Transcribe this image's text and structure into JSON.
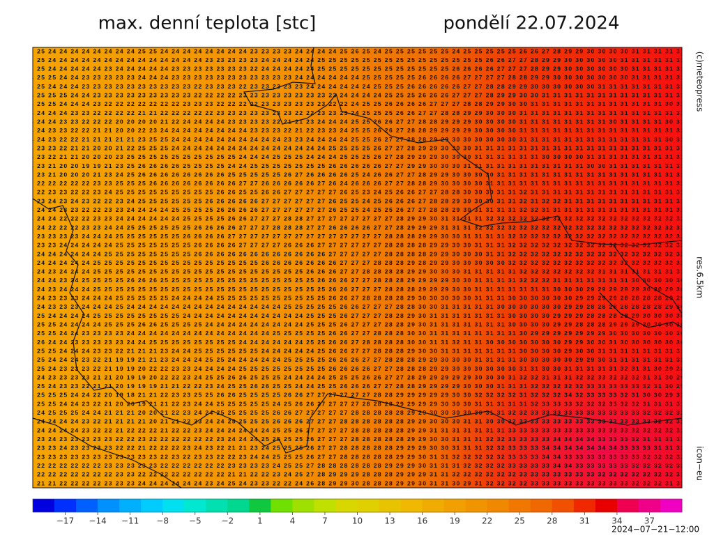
{
  "header": {
    "title": "max. denní teplota [stc]",
    "date": "pondělí 22.07.2024"
  },
  "side_labels": {
    "copyright": "(c)meteopress",
    "resolution": "res.6.5km",
    "model": "icon−eu"
  },
  "footer": {
    "timestamp": "2024−07−21−12:00"
  },
  "map": {
    "rows": [
      "25 25 24 24 24 24 24 24 24 24 25 25 24 24 24 24 24 24 24 24 23 23 23 23 24 24 24 24 25 26 25 24 25 25 25 25 25 25 24 25 25 25 25 25 26 26 27 28 29 29 30 30 30 30 31 31 31 31 31",
      "25 25 24 24 24 24 24 24 24 24 24 24 24 24 24 24 23 23 23 23 23 24 24 24 24 24 25 25 25 25 25 25 25 25 25 25 25 25 25 25 25 26 26 27 27 28 29 29 30 30 30 30 30 31 31 31 31 31 31",
      "25 25 24 24 24 24 24 23 24 24 24 24 24 23 23 23 23 23 23 23 22 24 24 24 24 24 25 25 25 25 25 25 25 25 25 25 25 25 26 26 26 26 27 27 27 28 29 29 30 30 30 30 30 30 31 31 31 31 31",
      "24 25 25 24 24 23 23 23 23 23 24 24 24 23 23 23 23 23 23 23 23 23 23 23 24 24 24 24 24 24 25 25 25 25 25 26 26 26 26 27 27 27 27 28 28 29 29 30 30 30 30 30 30 30 31 31 31 31 31",
      "25 25 24 24 24 23 23 23 23 23 23 23 23 23 23 22 23 23 23 22 23 23 23 23 23 24 24 24 24 24 24 25 25 25 26 26 26 26 26 27 27 28 28 29 29 30 30 30 30 30 30 31 31 31 31 31 31 31 31",
      "24 25 25 25 24 24 23 23 23 23 23 23 23 23 23 22 22 22 22 23 23 23 23 23 23 23 23 23 24 24 24 24 25 25 25 26 26 26 27 27 27 28 29 29 30 30 31 31 31 31 31 31 31 31 31 31 31 31 31",
      "25 25 25 24 24 24 23 22 22 22 22 22 22 22 23 23 23 22 22 22 22 23 23 23 23 23 23 22 22 24 25 25 26 26 26 26 27 27 27 28 28 29 29 30 30 31 31 31 31 31 31 31 31 31 31 31 31 30 31",
      "24 24 24 24 23 23 22 22 22 22 21 21 22 22 22 22 22 23 23 23 23 23 23 23 22 22 23 23 23 24 25 25 25 26 26 27 27 28 28 29 29 30 30 30 31 31 31 31 31 31 31 31 31 31 31 31 31 31 31",
      "24 24 24 23 23 22 22 22 20 20 20 20 21 22 24 24 24 24 23 23 23 23 22 21 21 23 24 24 24 25 25 26 26 27 27 28 28 29 29 29 30 30 30 30 31 31 31 31 31 31 31 31 30 31 31 31 31 30 31",
      "24 24 23 23 22 22 21 21 20 20 22 23 24 24 24 24 24 24 24 24 23 23 23 22 21 22 23 23 24 25 25 26 26 27 28 28 29 29 29 29 30 30 30 30 31 31 31 31 31 31 31 31 31 31 31 31 31 31 31",
      "24 24 23 22 22 21 21 21 21 21 23 25 25 24 24 24 24 24 24 24 24 24 24 23 23 24 24 24 24 25 25 26 27 27 28 28 29 29 30 30 30 30 30 30 31 31 31 31 31 31 31 31 31 31 31 31 31 30 31",
      "24 23 23 22 21 21 20 20 21 22 25 25 25 24 24 24 24 24 24 24 24 24 24 24 24 24 24 25 25 25 25 26 27 27 28 29 29 30 30 30 31 31 31 31 31 31 31 31 31 31 31 31 31 31 31 31 31 31 31",
      "24 23 22 21 21 20 20 20 23 25 25 25 25 25 25 25 25 25 25 24 24 24 25 25 25 24 24 24 25 25 25 26 27 28 29 29 29 30 30 30 31 31 31 31 31 31 30 30 30 30 31 31 31 31 31 31 31 31 31",
      "24 23 21 20 20 19 19 21 23 25 26 26 26 26 25 25 25 25 24 24 25 25 25 25 25 25 25 26 26 26 26 26 27 27 29 29 30 30 30 31 31 31 31 31 31 31 31 31 31 31 30 30 31 31 31 31 31 31 31",
      "23 23 21 20 20 20 21 23 24 25 26 26 26 26 26 26 26 26 25 25 25 25 25 26 27 26 26 26 26 25 24 26 26 27 27 28 29 29 30 30 30 30 31 31 31 31 31 31 31 31 31 31 31 31 31 31 31 31 31",
      "23 22 22 22 22 22 23 23 25 25 25 26 26 26 26 26 26 26 26 27 27 26 26 26 26 26 27 26 24 26 26 26 27 27 28 28 29 30 30 30 30 31 31 31 31 31 31 31 31 31 31 31 31 31 31 31 31 31 31",
      "23 22 23 23 22 22 23 24 25 25 25 25 25 25 25 25 25 26 26 25 25 26 26 27 27 27 27 27 26 25 23 24 25 26 26 27 27 28 28 30 30 30 31 31 32 31 31 31 31 31 31 31 31 31 31 31 31 31 31",
      "23 23 24 23 24 23 22 22 23 24 25 25 25 25 25 25 26 26 26 26 26 27 27 27 27 27 27 26 25 25 24 25 26 26 26 27 28 28 29 30 30 30 31 31 32 31 32 32 31 31 31 31 31 31 31 31 31 31 31",
      "24 24 24 23 23 22 22 23 23 24 24 24 24 25 25 25 25 26 26 26 26 27 27 27 27 27 27 26 25 25 24 25 25 26 27 27 28 28 29 30 31 31 31 31 32 32 31 31 31 31 31 31 31 31 31 31 31 31 31",
      "24 24 24 22 22 22 23 23 24 24 24 24 24 24 25 25 25 25 26 26 27 27 27 28 28 27 27 27 27 27 27 27 27 28 29 29 30 31 31 31 31 32 32 32 32 32 32 32 32 32 32 32 32 32 32 32 32 32 32",
      "23 24 22 22 22 23 23 24 24 25 25 25 25 25 25 26 26 26 26 27 27 27 28 28 28 27 27 26 26 26 26 27 27 28 29 29 29 31 31 31 32 32 32 32 32 32 32 32 32 32 32 32 32 32 32 32 32 32 32",
      "23 23 23 23 23 24 24 24 25 25 25 25 25 25 26 26 26 26 27 27 27 27 27 27 27 27 27 27 27 27 27 27 28 28 28 29 29 30 30 31 31 31 31 32 32 32 32 32 32 32 32 32 32 32 32 32 32 32 32",
      "23 23 23 24 24 24 24 24 25 25 25 25 25 25 25 26 26 26 26 27 27 27 27 26 26 26 27 27 27 27 27 27 28 28 28 28 29 29 30 30 31 31 31 32 32 32 32 32 32 32 32 32 32 32 32 32 32 32 32",
      "23 24 24 24 24 24 24 25 25 25 25 25 25 25 25 26 26 26 26 26 26 26 26 26 26 26 26 27 27 27 27 27 28 28 28 28 29 29 30 30 30 31 31 32 32 32 32 32 32 32 32 32 32 32 32 32 32 32 32",
      "23 24 24 24 24 24 25 25 25 25 25 25 25 25 25 25 25 25 25 25 25 26 26 26 26 26 26 26 27 27 27 28 28 28 29 28 29 29 30 30 30 30 30 32 32 32 32 32 32 32 32 32 32 32 32 32 32 32 32",
      "24 24 23 24 24 24 25 25 25 25 25 25 25 25 25 25 25 25 25 25 25 25 25 25 25 26 26 26 27 27 28 28 28 28 29 29 30 30 30 31 31 31 31 31 32 32 32 32 32 32 32 31 31 31 31 31 31 31 31",
      "24 24 24 23 24 25 25 25 25 26 26 26 25 25 25 25 25 25 25 25 25 25 25 25 25 25 26 26 26 27 27 28 28 28 29 29 29 29 30 30 31 31 31 31 32 32 32 31 31 31 31 31 31 31 30 30 30 30 30",
      "24 24 23 24 24 24 25 25 25 25 25 25 25 25 25 25 25 25 25 25 25 25 25 25 25 25 25 26 26 27 27 27 28 28 28 29 29 29 30 30 31 31 31 31 31 31 31 30 30 30 29 29 29 29 29 30 30 29 30",
      "25 24 23 23 23 24 24 24 25 25 25 25 25 24 24 24 24 25 25 25 25 25 25 25 25 25 25 26 26 27 28 28 28 28 29 30 30 30 30 30 31 31 31 30 30 30 30 30 30 29 29 29 29 28 28 28 28 29 29",
      "25 24 23 23 23 24 24 24 25 24 24 24 24 24 24 24 24 24 24 24 24 24 24 25 25 25 25 25 26 26 27 27 27 28 28 30 30 31 31 31 31 31 30 30 30 30 30 30 29 29 28 28 28 28 28 28 28 29 30",
      "25 25 24 24 24 24 25 25 25 25 25 25 25 25 24 24 24 24 24 24 24 24 24 24 24 25 25 25 26 27 27 27 28 28 29 30 31 31 31 31 31 31 31 30 30 30 30 29 29 29 28 28 28 28 29 30 30 30 30",
      "25 25 25 24 24 24 24 25 25 25 26 26 25 25 25 25 24 24 24 24 24 24 24 24 24 25 25 25 26 27 27 27 28 28 29 30 31 31 31 31 31 31 31 30 30 30 30 29 29 28 28 28 29 29 29 30 30 30 30",
      "25 25 25 24 24 23 23 23 23 24 24 24 24 24 24 24 24 24 24 24 24 24 25 25 25 25 25 26 26 27 27 28 28 28 30 30 31 31 31 31 31 31 31 31 30 29 29 29 29 29 29 29 30 30 30 30 30 30 30",
      "25 26 24 24 23 23 23 23 23 24 24 25 25 25 25 25 25 25 25 24 24 24 24 24 24 25 25 26 26 27 28 28 28 28 30 30 31 31 32 31 31 30 30 30 30 30 30 30 29 29 30 30 31 30 30 30 30 30 30",
      "25 25 25 24 24 24 23 23 22 21 21 21 23 24 24 25 25 25 25 25 25 24 24 24 24 24 25 26 26 27 27 28 28 28 29 30 30 31 31 31 31 31 31 31 30 30 30 30 29 30 30 31 31 31 31 31 31 31 31",
      "25 25 24 24 24 23 22 21 19 19 21 21 23 24 24 24 25 25 24 24 24 24 24 25 25 25 25 26 26 26 27 27 28 28 28 29 29 30 30 30 31 31 31 31 30 30 30 30 30 29 29 30 31 31 31 31 31 31 32",
      "25 25 24 23 23 23 22 21 19 19 20 22 22 23 23 24 24 24 24 25 25 25 25 25 25 25 25 26 26 26 26 27 27 28 28 28 29 29 30 30 30 30 30 30 31 31 30 30 31 31 31 31 31 32 31 31 30 29 28",
      "25 24 23 23 23 23 21 21 20 19 19 20 22 22 23 24 25 25 26 26 25 25 25 24 24 24 24 25 25 25 26 26 27 27 28 29 29 29 29 29 30 30 30 31 32 32 31 31 31 32 32 33 32 32 32 31 31 30 29",
      "25 25 24 23 23 22 21 21 20 19 19 19 21 21 22 22 23 24 25 25 26 26 25 25 24 24 25 25 26 26 26 27 27 28 28 29 29 29 29 30 30 30 31 31 31 32 32 32 32 32 33 33 33 33 33 32 31 30 29",
      "25 25 25 25 24 24 22 20 19 18 21 21 22 23 23 25 25 26 26 25 25 25 25 26 26 27 27 27 27 27 27 28 28 29 29 29 29 29 30 30 32 32 32 32 31 32 32 32 34 32 33 33 33 32 31 30 30 29 31",
      "25 25 25 24 24 23 22 21 20 20 19 21 21 22 23 24 24 25 25 25 25 25 24 25 26 26 27 27 27 27 28 28 28 29 29 29 29 30 30 30 31 31 31 31 31 32 33 33 33 32 32 32 33 32 32 31 31 31 31",
      "24 24 25 25 25 24 24 21 21 21 20 20 21 22 23 24 24 25 25 25 25 25 26 26 27 27 27 27 27 28 28 28 28 28 29 29 30 30 30 30 30 31 31 32 32 33 33 33 33 33 33 33 33 33 33 32 32 32 32",
      "24 24 24 24 24 23 22 21 21 21 21 20 21 21 22 23 24 24 25 25 25 25 26 26 26 27 27 27 28 28 28 28 28 28 29 29 30 30 30 31 31 30 30 32 33 33 33 33 33 33 33 33 33 33 33 33 32 32 32",
      "24 24 24 24 24 23 22 22 21 22 22 22 21 22 22 23 24 24 24 24 24 24 25 25 26 27 27 27 27 28 28 28 28 28 29 29 31 31 31 31 31 31 31 33 33 33 33 33 33 33 33 33 33 33 32 32 32 32 32",
      "23 23 24 23 23 23 23 23 22 22 23 22 22 22 22 22 22 23 24 24 24 25 25 25 25 26 27 27 27 28 28 28 28 28 29 29 30 30 31 31 31 32 32 33 33 33 33 34 34 34 34 33 33 33 32 31 31 31 31",
      "23 23 23 24 23 23 23 23 22 22 21 22 22 22 23 24 23 22 21 21 23 24 25 25 25 26 27 27 28 28 28 28 28 29 29 29 30 30 31 31 31 32 32 33 33 33 34 34 34 34 34 34 34 33 33 33 31 31 32",
      "23 23 23 23 23 23 23 23 23 23 23 23 22 23 22 23 23 22 22 23 24 24 25 25 25 26 27 27 28 28 28 28 28 29 29 30 31 31 32 32 32 32 32 33 33 33 34 34 33 33 33 33 33 33 33 32 32 32 32",
      "22 22 22 22 22 22 22 23 23 23 23 23 22 22 22 22 22 22 23 23 23 23 24 25 25 27 28 28 28 28 28 28 29 29 29 30 31 31 31 32 32 32 32 33 33 33 33 34 34 33 33 33 33 33 32 32 32 32 32",
      "22 22 22 22 22 22 22 22 23 23 22 22 22 22 22 22 22 22 21 21 22 22 23 24 25 27 28 29 29 29 28 28 28 29 29 29 31 31 32 32 32 32 32 32 33 33 33 33 33 33 33 32 32 32 32 32 32 32 31",
      "21 21 21 22 22 22 22 23 23 23 24 24 24 24 24 24 23 24 25 24 23 23 22 22 24 26 28 29 29 30 28 28 28 29 29 30 31 31 30 29 31 32 32 32 32 33 33 33 33 33 33 33 33 33 32 32 32 31 31"
    ]
  },
  "colorbar": {
    "lim": [
      -20,
      40
    ],
    "colors": [
      "#0000e0",
      "#0030ff",
      "#0060ff",
      "#0090ff",
      "#00b0ff",
      "#00ccff",
      "#00e0f0",
      "#00e8d0",
      "#00e0b0",
      "#00d890",
      "#10c840",
      "#70e000",
      "#a0e000",
      "#c0e000",
      "#d8d800",
      "#e0d000",
      "#e8c400",
      "#f0b800",
      "#f0ac00",
      "#f0a000",
      "#f09400",
      "#f08800",
      "#f07800",
      "#f06800",
      "#f05000",
      "#f02800",
      "#e80000",
      "#f00050",
      "#f00088",
      "#f000c0"
    ],
    "ticks": [
      {
        "value": -17,
        "label": "−17"
      },
      {
        "value": -14,
        "label": "−14"
      },
      {
        "value": -11,
        "label": "−11"
      },
      {
        "value": -8,
        "label": "−8"
      },
      {
        "value": -5,
        "label": "−5"
      },
      {
        "value": -2,
        "label": "−2"
      },
      1,
      4,
      7,
      10,
      13,
      16,
      19,
      22,
      25,
      28,
      31,
      34,
      37
    ]
  }
}
